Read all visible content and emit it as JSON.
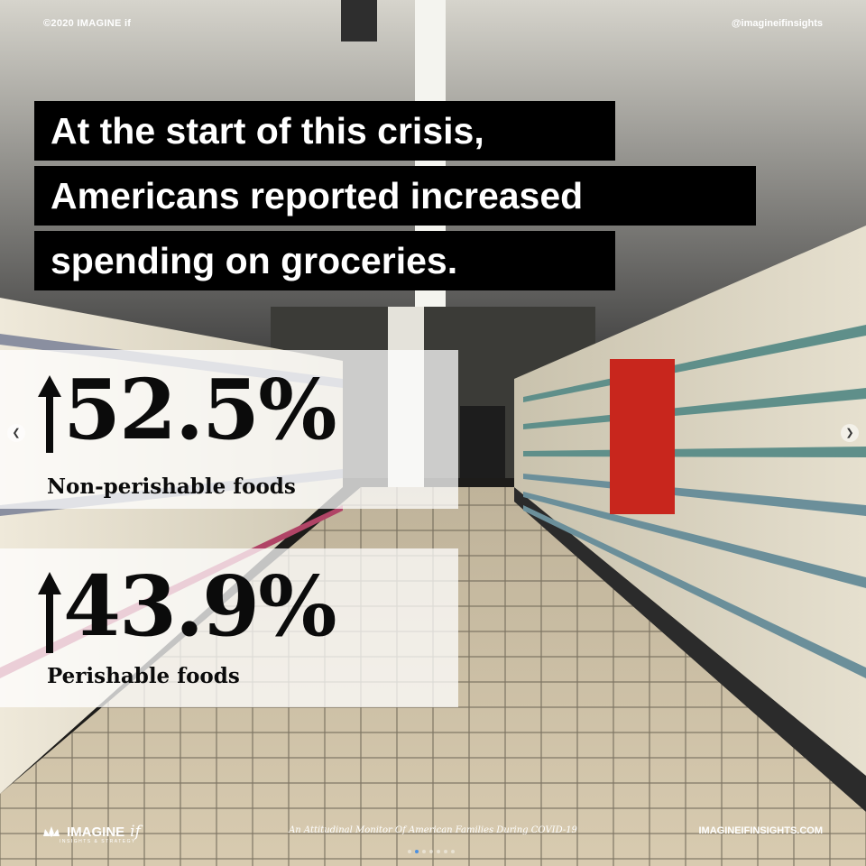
{
  "header": {
    "copyright": "©2020 IMAGINE if",
    "handle": "@imagineifinsights"
  },
  "headline": {
    "line1": "At the start of this crisis,",
    "line2": "Americans reported increased",
    "line3": "spending on groceries."
  },
  "stats": [
    {
      "value": "52.5%",
      "label": "Non-perishable foods",
      "direction": "up-arrow-icon"
    },
    {
      "value": "43.9%",
      "label": "Perishable foods",
      "direction": "up-arrow-icon"
    }
  ],
  "footer": {
    "logo_text": "IMAGINE",
    "logo_italic": "if",
    "logo_sub": "INSIGHTS & STRATEGY",
    "tagline": "An Attitudinal Monitor Of American Families During COVID-19",
    "site": "IMAGINEIFINSIGHTS.COM"
  },
  "carousel": {
    "prev_icon": "chevron-left-icon",
    "next_icon": "chevron-right-icon",
    "dot_count": 7,
    "active_dot": 1
  },
  "colors": {
    "headline_bg": "#000000",
    "headline_text": "#ffffff",
    "panel_bg": "rgba(255,255,255,0.74)",
    "stat_text": "#0b0b0b"
  }
}
